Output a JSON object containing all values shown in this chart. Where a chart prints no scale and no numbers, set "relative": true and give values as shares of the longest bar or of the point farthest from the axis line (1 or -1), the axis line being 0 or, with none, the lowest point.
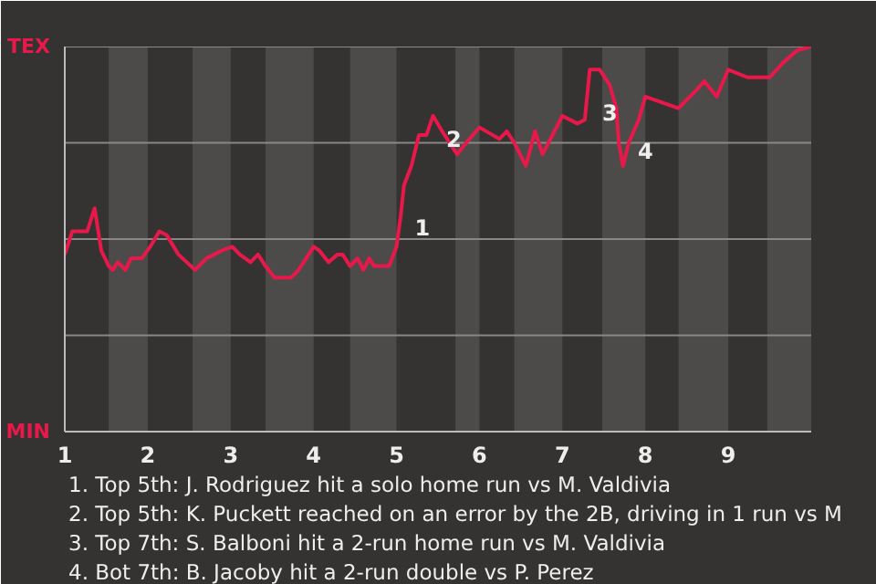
{
  "chart_data": {
    "type": "line",
    "relative": true,
    "x": [
      1.0,
      1.09,
      1.27,
      1.36,
      1.44,
      1.53,
      1.58,
      1.64,
      1.73,
      1.8,
      1.93,
      2.03,
      2.14,
      2.23,
      2.37,
      2.57,
      2.71,
      2.89,
      3.02,
      3.11,
      3.24,
      3.33,
      3.42,
      3.53,
      3.64,
      3.73,
      3.82,
      3.91,
      4.0,
      4.07,
      4.18,
      4.29,
      4.35,
      4.44,
      4.53,
      4.6,
      4.67,
      4.73,
      4.8,
      4.91,
      5.0,
      5.05,
      5.09,
      5.18,
      5.27,
      5.36,
      5.44,
      5.55,
      5.73,
      5.84,
      6.0,
      6.24,
      6.33,
      6.42,
      6.56,
      6.67,
      6.76,
      7.0,
      7.18,
      7.27,
      7.33,
      7.45,
      7.57,
      7.65,
      7.68,
      7.73,
      7.8,
      7.92,
      8.0,
      8.4,
      8.63,
      8.71,
      8.86,
      9.0,
      9.23,
      9.5,
      9.67,
      9.83,
      10.0
    ],
    "series": [
      {
        "color": "#e8194a",
        "values": [
          0.46,
          0.52,
          0.52,
          0.58,
          0.47,
          0.43,
          0.42,
          0.44,
          0.42,
          0.45,
          0.45,
          0.48,
          0.52,
          0.51,
          0.46,
          0.42,
          0.45,
          0.47,
          0.48,
          0.46,
          0.44,
          0.46,
          0.43,
          0.4,
          0.4,
          0.4,
          0.42,
          0.45,
          0.48,
          0.47,
          0.44,
          0.46,
          0.46,
          0.43,
          0.45,
          0.42,
          0.45,
          0.43,
          0.43,
          0.43,
          0.48,
          0.56,
          0.64,
          0.69,
          0.77,
          0.77,
          0.82,
          0.78,
          0.72,
          0.75,
          0.79,
          0.76,
          0.78,
          0.75,
          0.69,
          0.78,
          0.72,
          0.82,
          0.8,
          0.81,
          0.94,
          0.94,
          0.9,
          0.84,
          0.75,
          0.69,
          0.75,
          0.81,
          0.87,
          0.84,
          0.89,
          0.91,
          0.87,
          0.94,
          0.92,
          0.92,
          0.96,
          0.99,
          1.0
        ]
      }
    ],
    "xlim": [
      1,
      10
    ],
    "xticks": [
      1,
      2,
      3,
      4,
      5,
      6,
      7,
      8,
      9
    ],
    "tick_labels": "x",
    "ref_lines": [
      {
        "axis": "y",
        "value": 0.25,
        "color": "#8a8886"
      },
      {
        "axis": "y",
        "value": 0.5,
        "color": "#8a8886"
      },
      {
        "axis": "y",
        "value": 0.75,
        "color": "#8a8886"
      },
      {
        "axis": "y",
        "value": 1,
        "color": "#8a8886"
      }
    ],
    "bands": [
      {
        "axis": "x",
        "from": 1.53,
        "to": 2.0,
        "color": "#4d4b49"
      },
      {
        "axis": "x",
        "from": 2.54,
        "to": 3.0,
        "color": "#4d4b49"
      },
      {
        "axis": "x",
        "from": 3.42,
        "to": 4.0,
        "color": "#4d4b49"
      },
      {
        "axis": "x",
        "from": 4.44,
        "to": 5.0,
        "color": "#4d4b49"
      },
      {
        "axis": "x",
        "from": 5.71,
        "to": 6.0,
        "color": "#4d4b49"
      },
      {
        "axis": "x",
        "from": 6.42,
        "to": 7.0,
        "color": "#4d4b49"
      },
      {
        "axis": "x",
        "from": 7.48,
        "to": 8.0,
        "color": "#4d4b49"
      },
      {
        "axis": "x",
        "from": 8.4,
        "to": 9.0,
        "color": "#4d4b49"
      },
      {
        "axis": "x",
        "from": 9.47,
        "to": 10.0,
        "color": "#4d4b49"
      }
    ],
    "annotations": [
      "TEX",
      "MIN",
      {
        "text": "1",
        "x": 5.11,
        "y": 0.53
      },
      {
        "text": "2",
        "x": 5.49,
        "y": 0.76
      },
      {
        "text": "3",
        "x": 7.37,
        "y": 0.83
      },
      {
        "text": "4",
        "x": 7.8,
        "y": 0.73
      },
      "1. Top 5th: J. Rodriguez hit a solo home run vs M. Valdivia",
      "2. Top 5th: K. Puckett reached on an error by the 2B, driving in 1 run vs M",
      "3. Top 7th: S. Balboni hit a 2-run home run vs M. Valdivia",
      "4. Bot 7th: B. Jacoby hit a 2-run double vs P. Perez"
    ]
  }
}
